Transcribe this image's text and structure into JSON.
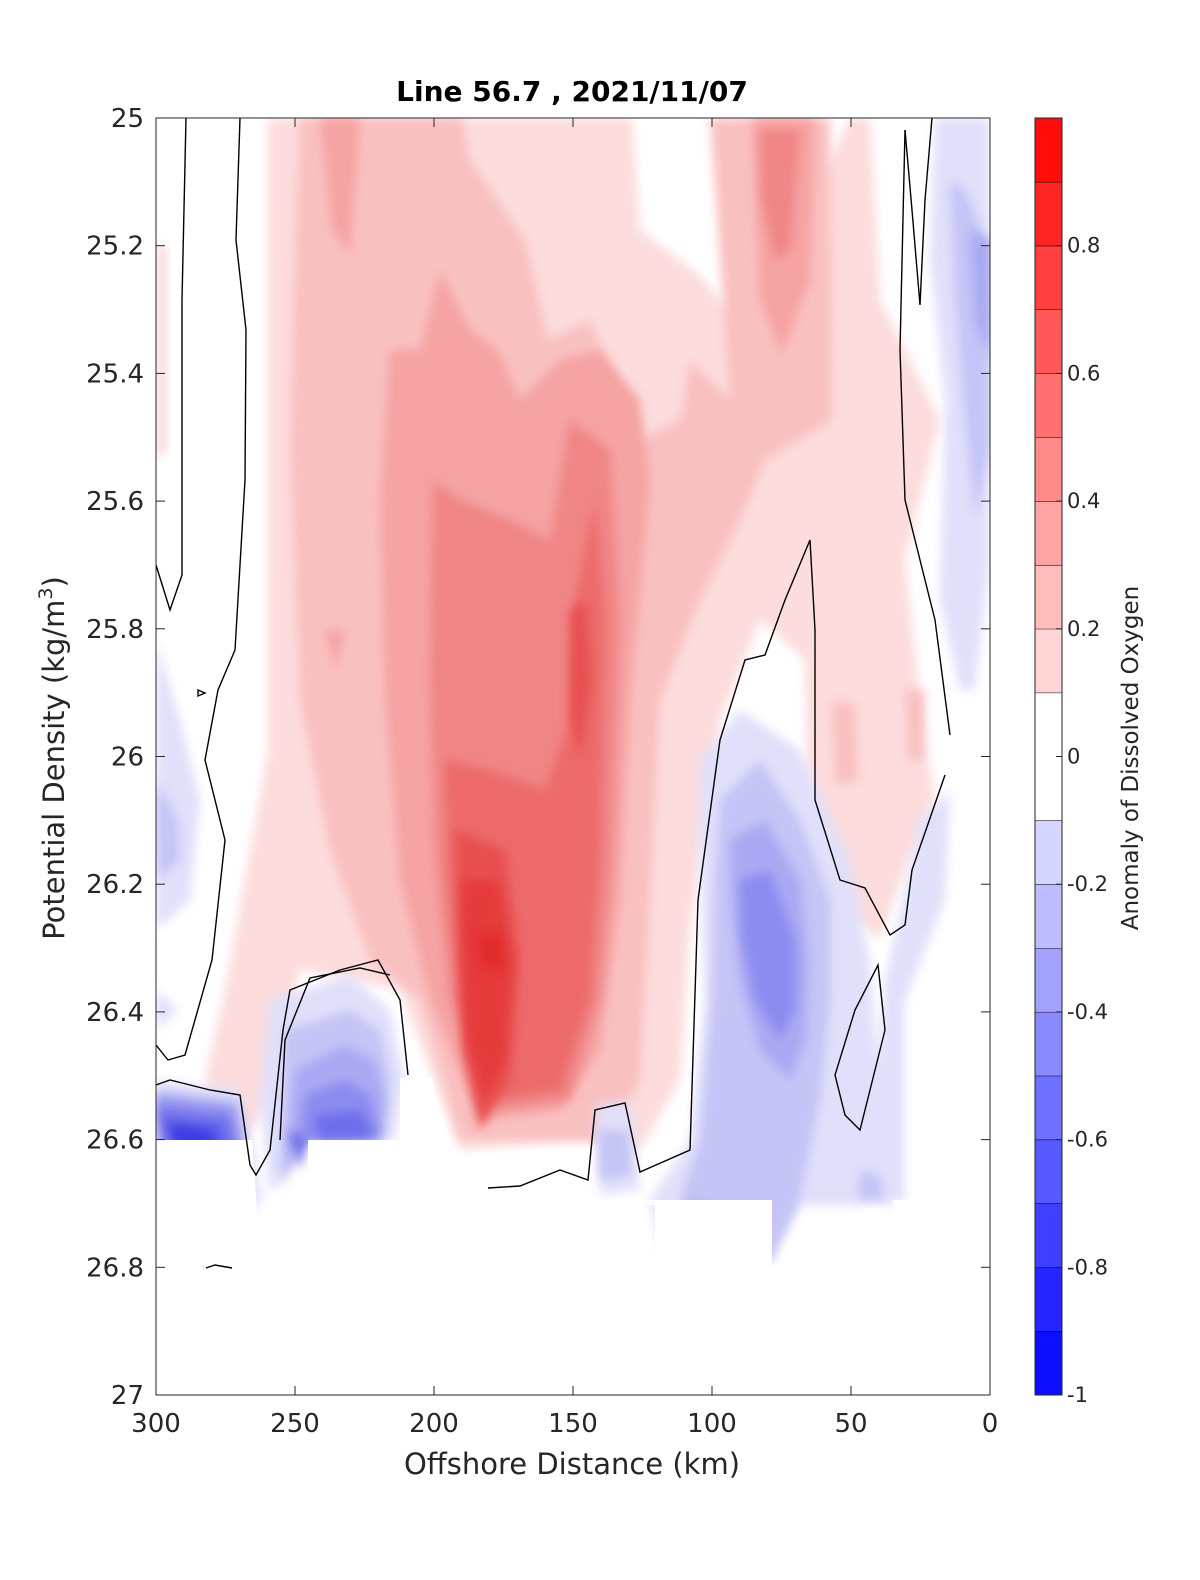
{
  "chart_data": {
    "type": "contour",
    "title": "Line 56.7 , 2021/11/07",
    "xlabel": "Offshore Distance (km)",
    "ylabel_main": "Potential Density (kg/m",
    "ylabel_sup": "3",
    "ylabel_close": ")",
    "colorbar_label": "Anomaly of Dissolved Oxygen",
    "xlim": [
      300,
      0
    ],
    "ylim": [
      25,
      27
    ],
    "clim": [
      -1,
      1
    ],
    "x_ticks": [
      300,
      250,
      200,
      150,
      100,
      50,
      0
    ],
    "x_tick_labels": [
      "300",
      "250",
      "200",
      "150",
      "100",
      "50",
      "0"
    ],
    "y_ticks": [
      25,
      25.2,
      25.4,
      25.6,
      25.8,
      26,
      26.2,
      26.4,
      26.6,
      26.8,
      27
    ],
    "y_tick_labels": [
      "25",
      "25.2",
      "25.4",
      "25.6",
      "25.8",
      "26",
      "26.2",
      "26.4",
      "26.6",
      "26.8",
      "27"
    ],
    "colorbar_ticks": [
      0.8,
      0.6,
      0.4,
      0.2,
      0,
      -0.2,
      -0.4,
      -0.6,
      -0.8,
      -1
    ],
    "colorbar_tick_labels": [
      "0.8",
      "0.6",
      "0.4",
      "0.2",
      "0",
      "-0.2",
      "-0.4",
      "-0.6",
      "-0.8",
      "-1"
    ],
    "colorbar_levels": [
      -1,
      -0.9,
      -0.8,
      -0.7,
      -0.6,
      -0.5,
      -0.4,
      -0.3,
      -0.2,
      -0.1,
      0.1,
      0.2,
      0.3,
      0.4,
      0.5,
      0.6,
      0.7,
      0.8,
      0.9,
      1.0
    ],
    "anomaly_features": [
      {
        "name": "nearshore-surface-high",
        "x": [
          95,
          60
        ],
        "y": [
          25,
          25.5
        ],
        "value": 0.4
      },
      {
        "name": "central-core",
        "x": [
          220,
          130
        ],
        "y": [
          25.2,
          26.7
        ],
        "value": 0.5
      },
      {
        "name": "peak-core",
        "x": [
          190,
          160
        ],
        "y": [
          26.15,
          26.6
        ],
        "value": 0.8
      },
      {
        "name": "core-upper",
        "x": [
          160,
          140
        ],
        "y": [
          25.6,
          26.0
        ],
        "value": 0.6
      },
      {
        "name": "offshore-deep-low",
        "x": [
          300,
          260
        ],
        "y": [
          26.5,
          26.7
        ],
        "value": -0.6
      },
      {
        "name": "bottom-low",
        "x": [
          250,
          210
        ],
        "y": [
          26.35,
          26.6
        ],
        "value": -0.4
      },
      {
        "name": "nearshore-deep-low",
        "x": [
          100,
          55
        ],
        "y": [
          25.9,
          26.8
        ],
        "value": -0.4
      },
      {
        "name": "coastal-surface-low",
        "x": [
          20,
          0
        ],
        "y": [
          25.1,
          25.9
        ],
        "value": -0.3
      },
      {
        "name": "offshore-mid-low",
        "x": [
          300,
          280
        ],
        "y": [
          25.8,
          26.3
        ],
        "value": -0.2
      }
    ]
  }
}
